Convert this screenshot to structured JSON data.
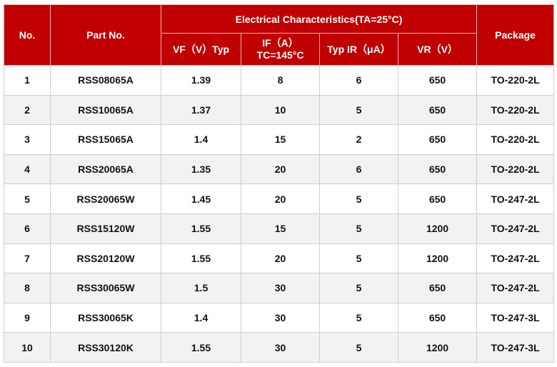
{
  "header": {
    "no": "No.",
    "part_no": "Part No.",
    "group": "Electrical  Characteristics(TA=25°C)",
    "vf": "VF（V）Typ",
    "if_line1": "IF（A）",
    "if_line2": "TC=145°C",
    "ir": "Typ IR（μA）",
    "vr": "VR（V）",
    "package": "Package"
  },
  "colors": {
    "header_bg": "#c00000",
    "alt_row": "#f2f2f2"
  },
  "rows": [
    {
      "no": "1",
      "part": "RSS08065A",
      "vf": "1.39",
      "if": "8",
      "ir": "6",
      "vr": "650",
      "pkg": "TO-220-2L"
    },
    {
      "no": "2",
      "part": "RSS10065A",
      "vf": "1.37",
      "if": "10",
      "ir": "5",
      "vr": "650",
      "pkg": "TO-220-2L"
    },
    {
      "no": "3",
      "part": "RSS15065A",
      "vf": "1.4",
      "if": "15",
      "ir": "2",
      "vr": "650",
      "pkg": "TO-220-2L"
    },
    {
      "no": "4",
      "part": "RSS20065A",
      "vf": "1.35",
      "if": "20",
      "ir": "6",
      "vr": "650",
      "pkg": "TO-220-2L"
    },
    {
      "no": "5",
      "part": "RSS20065W",
      "vf": "1.45",
      "if": "20",
      "ir": "5",
      "vr": "650",
      "pkg": "TO-247-2L"
    },
    {
      "no": "6",
      "part": "RSS15120W",
      "vf": "1.55",
      "if": "15",
      "ir": "5",
      "vr": "1200",
      "pkg": "TO-247-2L"
    },
    {
      "no": "7",
      "part": "RSS20120W",
      "vf": "1.55",
      "if": "20",
      "ir": "5",
      "vr": "1200",
      "pkg": "TO-247-2L"
    },
    {
      "no": "8",
      "part": "RSS30065W",
      "vf": "1.5",
      "if": "30",
      "ir": "5",
      "vr": "650",
      "pkg": "TO-247-2L"
    },
    {
      "no": "9",
      "part": "RSS30065K",
      "vf": "1.4",
      "if": "30",
      "ir": "5",
      "vr": "650",
      "pkg": "TO-247-3L"
    },
    {
      "no": "10",
      "part": "RSS30120K",
      "vf": "1.55",
      "if": "30",
      "ir": "5",
      "vr": "1200",
      "pkg": "TO-247-3L"
    }
  ]
}
